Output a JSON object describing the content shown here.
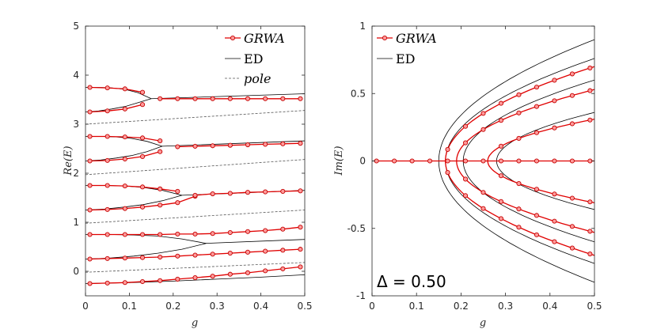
{
  "chart_data": [
    {
      "type": "line",
      "panel": "left",
      "xlabel": "g",
      "ylabel": "Re(E)",
      "xlim": [
        0,
        0.5
      ],
      "ylim": [
        -0.5,
        5
      ],
      "xticks": [
        "0",
        "0.1",
        "0.2",
        "0.3",
        "0.4",
        "0.5"
      ],
      "yticks": [
        "0",
        "1",
        "2",
        "3",
        "4",
        "5"
      ],
      "legend": [
        "GRWA",
        "ED",
        "pole"
      ],
      "legend_position": "top-right",
      "pole_lines": [
        {
          "name": "pole",
          "x": [
            0,
            0.5
          ],
          "y": [
            -0.02,
            0.18
          ]
        },
        {
          "name": "pole",
          "x": [
            0,
            0.5
          ],
          "y": [
            0.98,
            1.25
          ]
        },
        {
          "name": "pole",
          "x": [
            0,
            0.5
          ],
          "y": [
            1.97,
            2.28
          ]
        },
        {
          "name": "pole",
          "x": [
            0,
            0.5
          ],
          "y": [
            3.0,
            3.28
          ]
        }
      ],
      "ed_bubbles": [
        {
          "g0": 0.275,
          "upper": [
            0.75,
            0.75,
            0.74,
            0.72,
            0.66,
            0.57
          ],
          "lower": [
            0.25,
            0.27,
            0.31,
            0.37,
            0.45,
            0.57
          ],
          "after_g": [
            0.3,
            0.5
          ],
          "after_y": [
            0.56,
            0.65
          ]
        },
        {
          "g0": 0.22,
          "upper": [
            1.75,
            1.75,
            1.74,
            1.71,
            1.65,
            1.55
          ],
          "lower": [
            1.25,
            1.27,
            1.31,
            1.36,
            1.44,
            1.55
          ],
          "after_g": [
            0.24,
            0.5
          ],
          "after_y": [
            1.55,
            1.65
          ]
        },
        {
          "g0": 0.175,
          "upper": [
            2.75,
            2.75,
            2.74,
            2.71,
            2.65,
            2.55
          ],
          "lower": [
            2.25,
            2.27,
            2.31,
            2.36,
            2.44,
            2.55
          ],
          "after_g": [
            0.2,
            0.5
          ],
          "after_y": [
            2.55,
            2.66
          ]
        },
        {
          "g0": 0.15,
          "upper": [
            3.75,
            3.75,
            3.74,
            3.71,
            3.64,
            3.52
          ],
          "lower": [
            3.25,
            3.27,
            3.31,
            3.36,
            3.44,
            3.52
          ],
          "after_g": [
            0.18,
            0.5
          ],
          "after_y": [
            3.52,
            3.62
          ]
        }
      ],
      "ed_lines": [
        {
          "name": "ED",
          "x": [
            0,
            0.1,
            0.2,
            0.3,
            0.4,
            0.5
          ],
          "y": [
            -0.25,
            -0.23,
            -0.2,
            -0.16,
            -0.12,
            -0.07
          ]
        }
      ],
      "series": [
        {
          "name": "GRWA",
          "x": [
            0.01,
            0.05,
            0.09,
            0.13,
            0.17,
            0.21,
            0.25,
            0.29,
            0.33,
            0.37,
            0.41,
            0.45,
            0.49
          ],
          "y": [
            -0.25,
            -0.24,
            -0.23,
            -0.21,
            -0.19,
            -0.16,
            -0.13,
            -0.1,
            -0.06,
            -0.03,
            0.01,
            0.05,
            0.09
          ]
        },
        {
          "name": "GRWA",
          "x": [
            0.01,
            0.05,
            0.09,
            0.13,
            0.17,
            0.21,
            0.25,
            0.29,
            0.33,
            0.37,
            0.41,
            0.45,
            0.49
          ],
          "y": [
            0.25,
            0.26,
            0.27,
            0.28,
            0.29,
            0.31,
            0.33,
            0.35,
            0.37,
            0.39,
            0.41,
            0.43,
            0.45
          ]
        },
        {
          "name": "GRWA",
          "x": [
            0.01,
            0.05,
            0.09,
            0.13,
            0.17,
            0.21,
            0.25,
            0.29,
            0.33,
            0.37,
            0.41,
            0.45,
            0.49
          ],
          "y": [
            0.75,
            0.75,
            0.75,
            0.75,
            0.75,
            0.76,
            0.76,
            0.77,
            0.79,
            0.81,
            0.83,
            0.86,
            0.9
          ]
        },
        {
          "name": "GRWA",
          "x": [
            0.01,
            0.05,
            0.09,
            0.13,
            0.17,
            0.21,
            0.25
          ],
          "y": [
            1.25,
            1.26,
            1.28,
            1.31,
            1.35,
            1.4,
            1.53
          ]
        },
        {
          "name": "GRWA",
          "x": [
            0.01,
            0.05,
            0.09,
            0.13,
            0.17,
            0.21
          ],
          "y": [
            1.75,
            1.75,
            1.74,
            1.72,
            1.68,
            1.63
          ]
        },
        {
          "name": "GRWA",
          "x": [
            0.25,
            0.29,
            0.33,
            0.37,
            0.41,
            0.45,
            0.49
          ],
          "y": [
            1.55,
            1.58,
            1.59,
            1.61,
            1.62,
            1.63,
            1.64
          ]
        },
        {
          "name": "GRWA",
          "x": [
            0.01,
            0.05,
            0.09,
            0.13,
            0.17
          ],
          "y": [
            2.25,
            2.26,
            2.29,
            2.34,
            2.44
          ]
        },
        {
          "name": "GRWA",
          "x": [
            0.01,
            0.05,
            0.09,
            0.13,
            0.17
          ],
          "y": [
            2.75,
            2.75,
            2.74,
            2.72,
            2.66
          ]
        },
        {
          "name": "GRWA",
          "x": [
            0.21,
            0.25,
            0.29,
            0.33,
            0.37,
            0.41,
            0.45,
            0.49
          ],
          "y": [
            2.54,
            2.55,
            2.56,
            2.57,
            2.58,
            2.59,
            2.6,
            2.61
          ]
        },
        {
          "name": "GRWA",
          "x": [
            0.01,
            0.05,
            0.09,
            0.13
          ],
          "y": [
            3.25,
            3.27,
            3.31,
            3.4
          ]
        },
        {
          "name": "GRWA",
          "x": [
            0.01,
            0.05,
            0.09,
            0.13
          ],
          "y": [
            3.75,
            3.74,
            3.72,
            3.65
          ]
        },
        {
          "name": "GRWA",
          "x": [
            0.17,
            0.21,
            0.25,
            0.29,
            0.33,
            0.37,
            0.41,
            0.45,
            0.49
          ],
          "y": [
            3.52,
            3.52,
            3.52,
            3.52,
            3.52,
            3.52,
            3.52,
            3.52,
            3.52
          ]
        }
      ]
    },
    {
      "type": "line",
      "panel": "right",
      "xlabel": "g",
      "ylabel": "Im(E)",
      "xlim": [
        0,
        0.5
      ],
      "ylim": [
        -1,
        1
      ],
      "xticks": [
        "0",
        "0.1",
        "0.2",
        "0.3",
        "0.4",
        "0.5"
      ],
      "yticks": [
        "-1",
        "-0.5",
        "0",
        "0.5",
        "1"
      ],
      "legend": [
        "GRWA",
        "ED"
      ],
      "legend_position": "top-left",
      "annotation": "Δ = 0.50",
      "ed_branches": [
        {
          "g0": 0.15,
          "im_at_05": 0.9
        },
        {
          "g0": 0.165,
          "im_at_05": 0.76
        },
        {
          "g0": 0.205,
          "im_at_05": 0.6
        },
        {
          "g0": 0.28,
          "im_at_05": 0.36
        }
      ],
      "grwa_branches": [
        {
          "g0": 0.165,
          "im_at_05": 0.7
        },
        {
          "g0": 0.19,
          "im_at_05": 0.53
        },
        {
          "g0": 0.26,
          "im_at_05": 0.31
        }
      ],
      "grwa_zero_x": [
        0.01,
        0.05,
        0.09,
        0.13,
        0.17,
        0.21,
        0.25,
        0.29,
        0.33,
        0.37,
        0.41,
        0.45,
        0.49
      ],
      "grwa_branch_x": [
        0.17,
        0.21,
        0.25,
        0.29,
        0.33,
        0.37,
        0.41,
        0.45,
        0.49
      ]
    }
  ]
}
